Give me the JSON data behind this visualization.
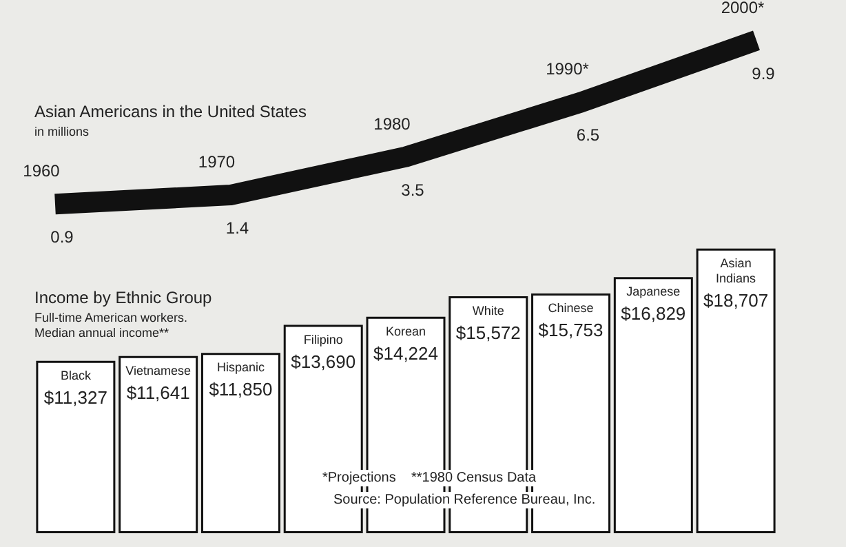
{
  "chart_data": [
    {
      "type": "line",
      "title": "Asian Americans in the United States",
      "subtitle": "in millions",
      "categories": [
        "1960",
        "1970",
        "1980",
        "1990*",
        "2000*"
      ],
      "series": [
        {
          "color": "#111111",
          "values": [
            0.9,
            1.4,
            3.5,
            6.5,
            9.9
          ]
        }
      ],
      "data_labels": true,
      "marker": "none",
      "line_style": "solid"
    },
    {
      "type": "bar",
      "title": "Income by Ethnic Group",
      "subtitle": "Full-time American workers.\nMedian annual income**",
      "categories": [
        "Black",
        "Vietnamese",
        "Hispanic",
        "Filipino",
        "Korean",
        "White",
        "Chinese",
        "Japanese",
        "Asian\nIndians"
      ],
      "series": [
        {
          "color": "#ffffff",
          "values": [
            11327,
            11641,
            11850,
            13690,
            14224,
            15572,
            15753,
            16829,
            18707
          ],
          "value_labels": [
            "$11,327",
            "$11,641",
            "$11,850",
            "$13,690",
            "$14,224",
            "$15,572",
            "$15,753",
            "$16,829",
            "$18,707"
          ]
        }
      ],
      "annotations": [
        "*Projections    **1980 Census Data",
        "Source: Population Reference Bureau, Inc."
      ]
    }
  ]
}
